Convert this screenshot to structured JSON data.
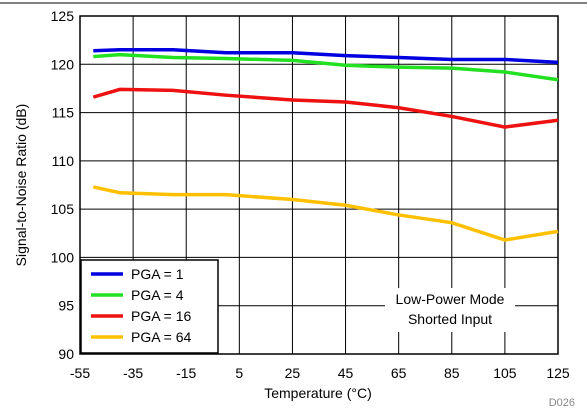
{
  "chart_data": {
    "type": "line",
    "x_label": "Temperature (°C)",
    "y_label": "Signal-to-Noise Ratio (dB)",
    "x": [
      -50,
      -40,
      -20,
      0,
      25,
      45,
      65,
      85,
      105,
      125
    ],
    "series": [
      {
        "name": "PGA = 1",
        "color": "#0000e0",
        "values": [
          121.4,
          121.5,
          121.5,
          121.2,
          121.2,
          120.9,
          120.7,
          120.5,
          120.5,
          120.2
        ]
      },
      {
        "name": "PGA = 4",
        "color": "#22e022",
        "values": [
          120.8,
          121.0,
          120.7,
          120.6,
          120.4,
          119.9,
          119.7,
          119.6,
          119.2,
          118.4
        ]
      },
      {
        "name": "PGA = 16",
        "color": "#ee1111",
        "values": [
          116.6,
          117.4,
          117.3,
          116.8,
          116.3,
          116.1,
          115.5,
          114.6,
          113.5,
          114.2
        ]
      },
      {
        "name": "PGA = 64",
        "color": "#ffc000",
        "values": [
          107.3,
          106.7,
          106.5,
          106.5,
          106.0,
          105.4,
          104.4,
          103.6,
          101.8,
          102.7
        ]
      }
    ],
    "xlim": [
      -55,
      125
    ],
    "xticks": [
      -55,
      -35,
      -15,
      5,
      25,
      45,
      65,
      85,
      105,
      125
    ],
    "ylim": [
      90,
      125
    ],
    "yticks": [
      90,
      95,
      100,
      105,
      110,
      115,
      120,
      125
    ],
    "grid": true,
    "legend": "lower left",
    "annotations": [
      "Low-Power Mode",
      "Shorted Input"
    ],
    "figure_id": "D026"
  }
}
